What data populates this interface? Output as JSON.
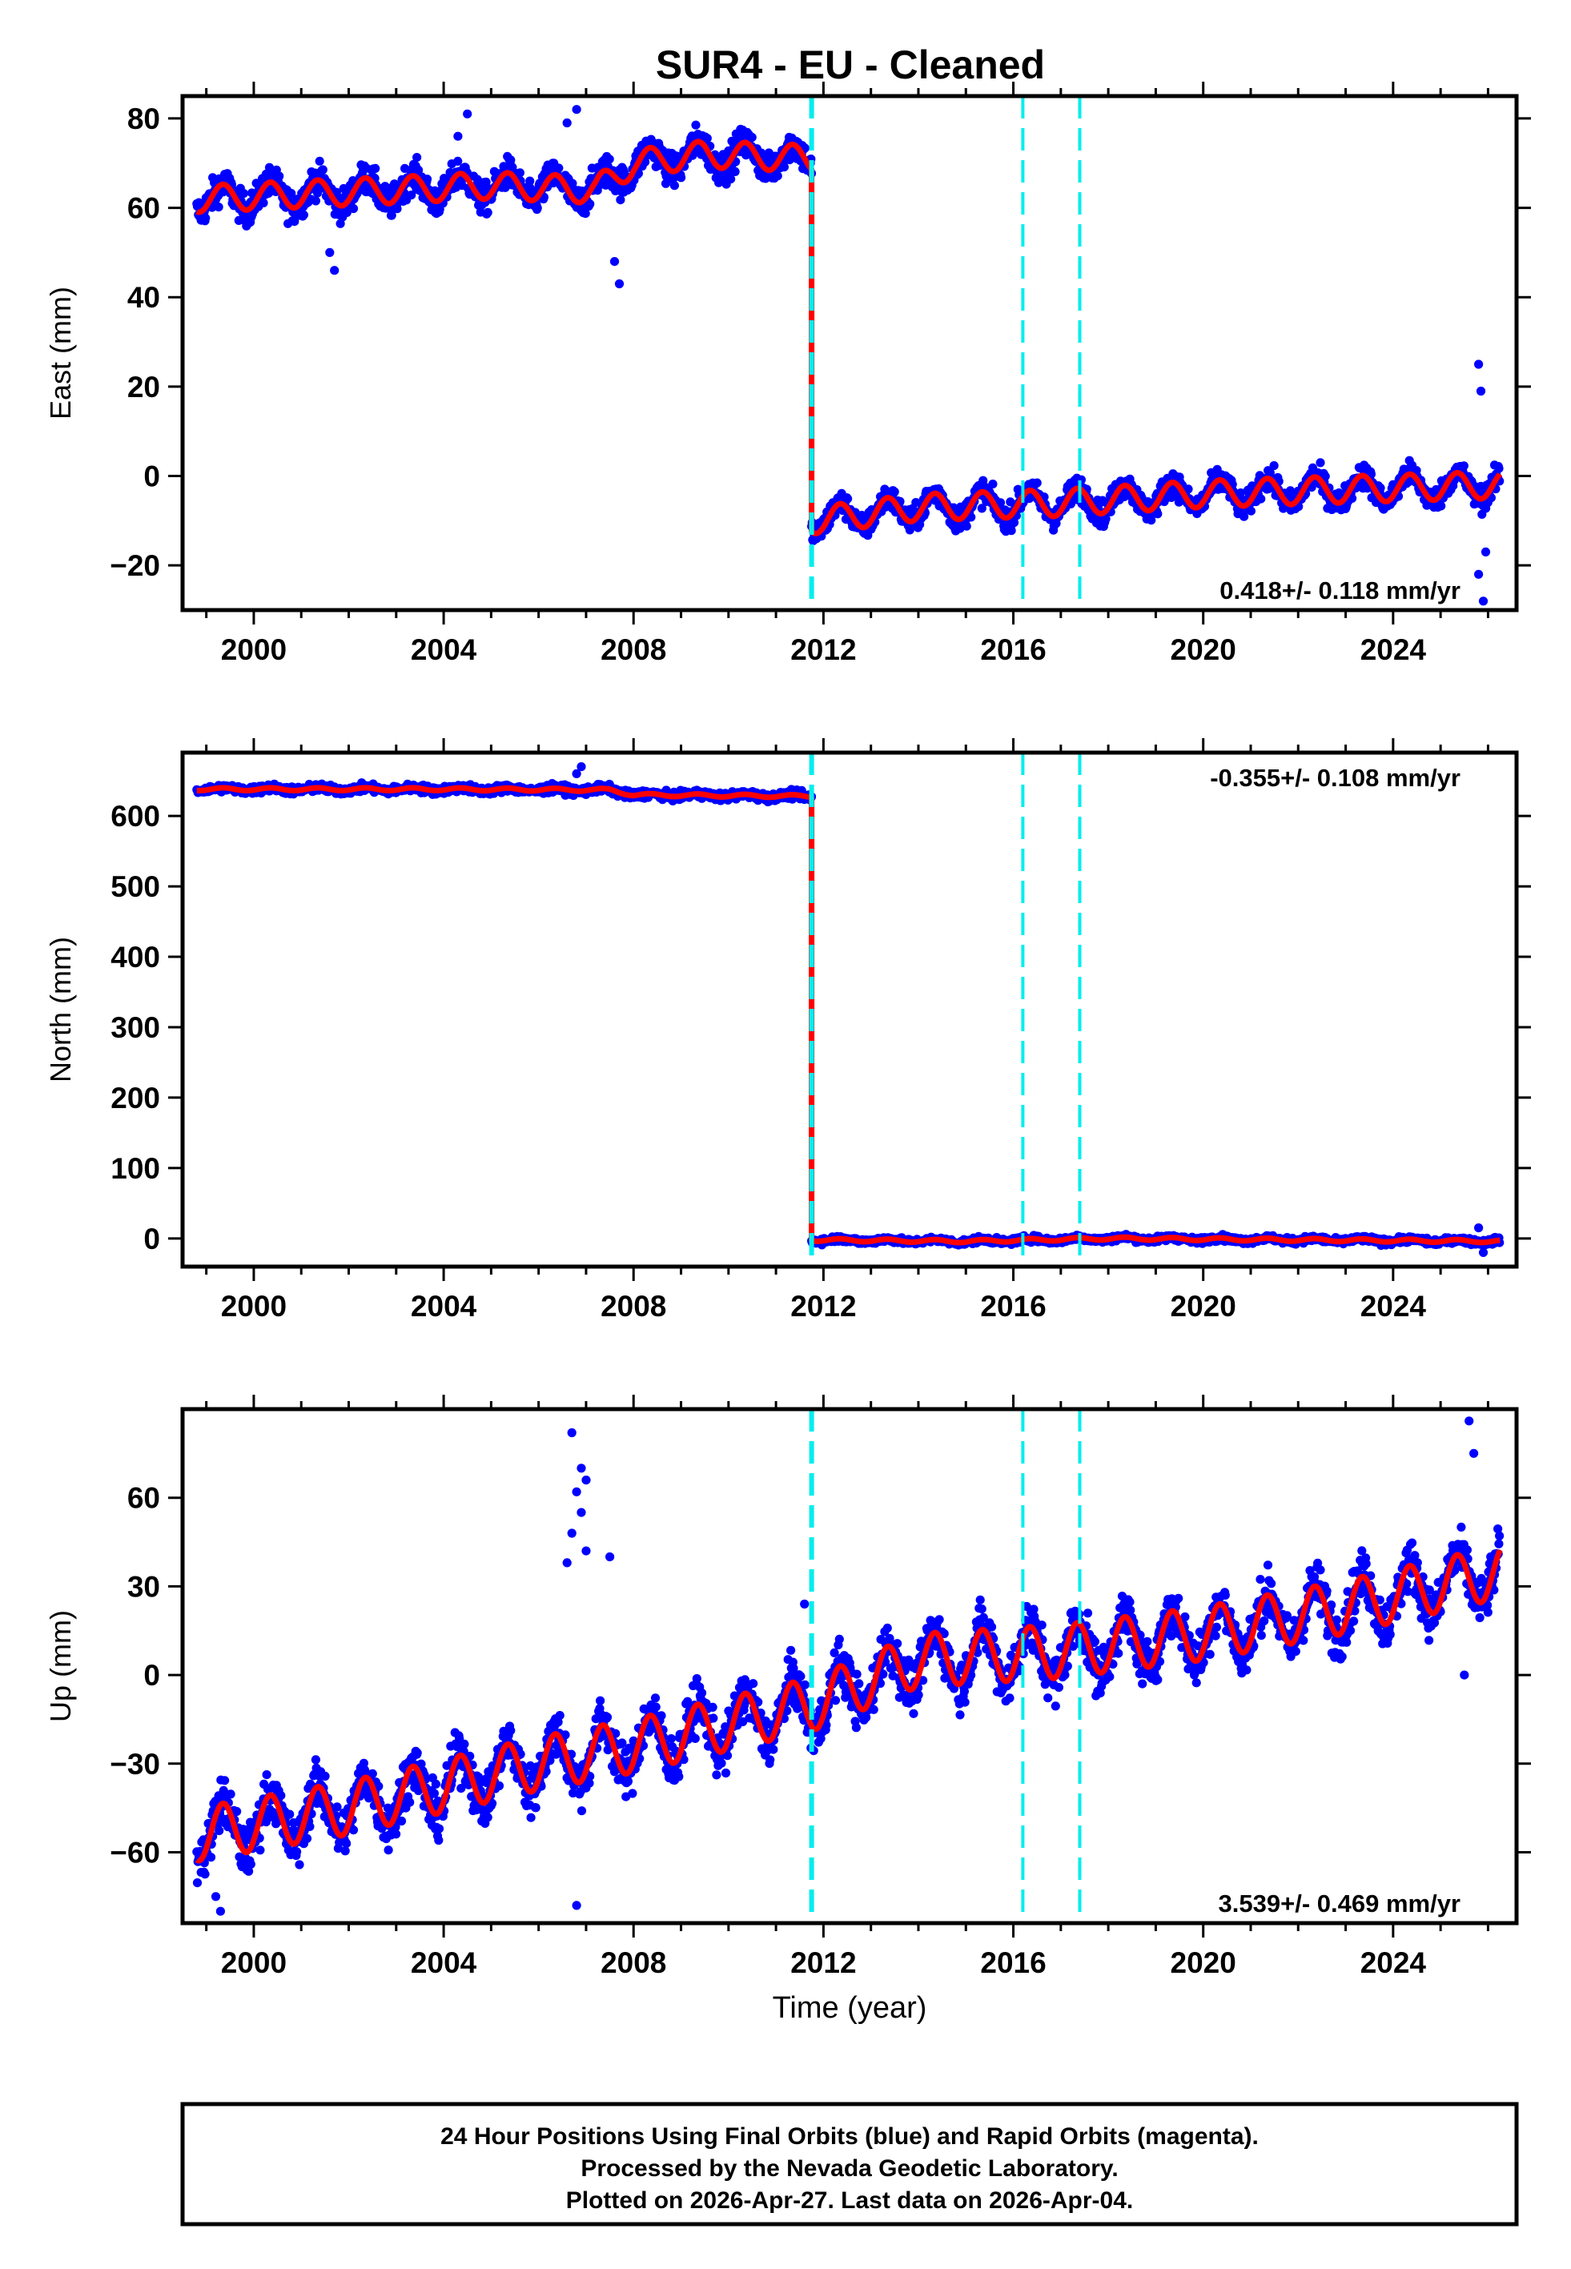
{
  "chart_data": [
    {
      "type": "scatter",
      "panel": "east",
      "title": "SUR4  - EU - Cleaned",
      "ylabel": "East (mm)",
      "xlabel": "",
      "xlim": [
        1998.5,
        2026.6
      ],
      "ylim": [
        -30,
        85
      ],
      "xticks": [
        2000,
        2004,
        2008,
        2012,
        2016,
        2020,
        2024
      ],
      "yticks": [
        -20,
        0,
        20,
        40,
        60,
        80
      ],
      "ytick_labels": [
        "−20",
        "0",
        "20",
        "40",
        "60",
        "80"
      ],
      "rate_label": "0.418+/- 0.118 mm/yr",
      "rate_position": "bottom-right",
      "series": [
        {
          "name": "Final Orbits (blue)",
          "kind": "daily-positions",
          "color": "#0000ff",
          "segments": [
            {
              "start": 1998.8,
              "end": 2011.75,
              "base": [
                [
                  1998.8,
                  62
                ],
                [
                  2003,
                  64
                ],
                [
                  2005,
                  65
                ],
                [
                  2007.2,
                  64
                ],
                [
                  2008,
                  70
                ],
                [
                  2009.5,
                  72
                ],
                [
                  2011.75,
                  71
                ]
              ],
              "amplitude": 3,
              "scatter": 2.5
            },
            {
              "start": 2011.75,
              "end": 2026.25,
              "base": [
                [
                  2011.75,
                  -10
                ],
                [
                  2014,
                  -7
                ],
                [
                  2017,
                  -6
                ],
                [
                  2020,
                  -4
                ],
                [
                  2023,
                  -3
                ],
                [
                  2026.25,
                  -2
                ]
              ],
              "amplitude": 3,
              "scatter": 2
            }
          ]
        },
        {
          "name": "Model fit",
          "kind": "fit-line",
          "color": "#ff0000",
          "segments": [
            {
              "start": 1998.8,
              "end": 2011.75,
              "base": [
                [
                  1998.8,
                  62
                ],
                [
                  2003,
                  64
                ],
                [
                  2005,
                  65
                ],
                [
                  2007.2,
                  64
                ],
                [
                  2008,
                  70
                ],
                [
                  2009.5,
                  72
                ],
                [
                  2011.75,
                  71
                ]
              ],
              "amplitude": 3
            },
            {
              "start": 2011.75,
              "end": 2026.25,
              "base": [
                [
                  2011.75,
                  -10
                ],
                [
                  2014,
                  -7
                ],
                [
                  2017,
                  -6
                ],
                [
                  2020,
                  -4
                ],
                [
                  2023,
                  -3
                ],
                [
                  2026.25,
                  -2
                ]
              ],
              "amplitude": 3
            }
          ]
        }
      ],
      "outliers": [
        {
          "x": 2004.5,
          "y": 81
        },
        {
          "x": 2004.3,
          "y": 76
        },
        {
          "x": 2006.8,
          "y": 82
        },
        {
          "x": 2006.6,
          "y": 79
        },
        {
          "x": 2007.7,
          "y": 43
        },
        {
          "x": 2007.6,
          "y": 48
        },
        {
          "x": 2001.7,
          "y": 46
        },
        {
          "x": 2001.6,
          "y": 50
        },
        {
          "x": 2025.8,
          "y": 25
        },
        {
          "x": 2025.85,
          "y": 19
        },
        {
          "x": 2025.9,
          "y": -28
        },
        {
          "x": 2025.8,
          "y": -22
        },
        {
          "x": 2025.95,
          "y": -17
        }
      ],
      "breaks": [
        {
          "x": 2011.75,
          "style": "heavy"
        },
        {
          "x": 2016.2,
          "style": "light"
        },
        {
          "x": 2017.4,
          "style": "light"
        }
      ]
    },
    {
      "type": "scatter",
      "panel": "north",
      "title": "",
      "ylabel": "North (mm)",
      "xlabel": "",
      "xlim": [
        1998.5,
        2026.6
      ],
      "ylim": [
        -40,
        690
      ],
      "xticks": [
        2000,
        2004,
        2008,
        2012,
        2016,
        2020,
        2024
      ],
      "yticks": [
        0,
        100,
        200,
        300,
        400,
        500,
        600
      ],
      "ytick_labels": [
        "0",
        "100",
        "200",
        "300",
        "400",
        "500",
        "600"
      ],
      "rate_label": "-0.355+/- 0.108 mm/yr",
      "rate_position": "top-right",
      "series": [
        {
          "name": "Final Orbits (blue)",
          "kind": "daily-positions",
          "color": "#0000ff",
          "segments": [
            {
              "start": 1998.8,
              "end": 2011.75,
              "base": [
                [
                  1998.8,
                  638
                ],
                [
                  2004,
                  638
                ],
                [
                  2007.5,
                  637
                ],
                [
                  2008,
                  630
                ],
                [
                  2011.75,
                  628
                ]
              ],
              "amplitude": 2,
              "scatter": 4
            },
            {
              "start": 2011.75,
              "end": 2026.25,
              "base": [
                [
                  2011.75,
                  -2
                ],
                [
                  2015,
                  -4
                ],
                [
                  2018,
                  0
                ],
                [
                  2022,
                  -2
                ],
                [
                  2026.25,
                  -4
                ]
              ],
              "amplitude": 2,
              "scatter": 3
            }
          ]
        },
        {
          "name": "Model fit",
          "kind": "fit-line",
          "color": "#ff0000",
          "segments": [
            {
              "start": 1998.8,
              "end": 2011.75,
              "base": [
                [
                  1998.8,
                  638
                ],
                [
                  2004,
                  638
                ],
                [
                  2007.5,
                  637
                ],
                [
                  2008,
                  630
                ],
                [
                  2011.75,
                  628
                ]
              ],
              "amplitude": 2
            },
            {
              "start": 2011.75,
              "end": 2026.25,
              "base": [
                [
                  2011.75,
                  -2
                ],
                [
                  2015,
                  -4
                ],
                [
                  2018,
                  0
                ],
                [
                  2022,
                  -2
                ],
                [
                  2026.25,
                  -4
                ]
              ],
              "amplitude": 2
            }
          ]
        }
      ],
      "outliers": [
        {
          "x": 2006.9,
          "y": 670
        },
        {
          "x": 2006.8,
          "y": 660
        },
        {
          "x": 2025.8,
          "y": 15
        },
        {
          "x": 2025.9,
          "y": -20
        }
      ],
      "breaks": [
        {
          "x": 2011.75,
          "style": "heavy"
        },
        {
          "x": 2016.2,
          "style": "light"
        },
        {
          "x": 2017.4,
          "style": "light"
        }
      ]
    },
    {
      "type": "scatter",
      "panel": "up",
      "title": "",
      "ylabel": "Up (mm)",
      "xlabel": "Time (year)",
      "xlim": [
        1998.5,
        2026.6
      ],
      "ylim": [
        -84,
        90
      ],
      "xticks": [
        2000,
        2004,
        2008,
        2012,
        2016,
        2020,
        2024
      ],
      "yticks": [
        -60,
        -30,
        0,
        30,
        60
      ],
      "ytick_labels": [
        "−60",
        "−30",
        "0",
        "30",
        "60"
      ],
      "rate_label": "3.539+/- 0.469 mm/yr",
      "rate_position": "bottom-right",
      "series": [
        {
          "name": "Final Orbits (blue)",
          "kind": "daily-positions",
          "color": "#0000ff",
          "segments": [
            {
              "start": 1998.8,
              "end": 2026.25,
              "base": [
                [
                  1998.8,
                  -54
                ],
                [
                  2002,
                  -45
                ],
                [
                  2006,
                  -30
                ],
                [
                  2008,
                  -24
                ],
                [
                  2011.75,
                  -10
                ],
                [
                  2014,
                  5
                ],
                [
                  2017,
                  8
                ],
                [
                  2020,
                  14
                ],
                [
                  2023,
                  23
                ],
                [
                  2026.25,
                  35
                ]
              ],
              "amplitude": 9,
              "scatter": 6
            }
          ]
        },
        {
          "name": "Model fit",
          "kind": "fit-line",
          "color": "#ff0000",
          "segments": [
            {
              "start": 1998.8,
              "end": 2026.25,
              "base": [
                [
                  1998.8,
                  -54
                ],
                [
                  2002,
                  -45
                ],
                [
                  2006,
                  -30
                ],
                [
                  2008,
                  -24
                ],
                [
                  2011.75,
                  -10
                ],
                [
                  2014,
                  5
                ],
                [
                  2017,
                  8
                ],
                [
                  2020,
                  14
                ],
                [
                  2023,
                  23
                ],
                [
                  2026.25,
                  35
                ]
              ],
              "amplitude": 9
            }
          ]
        }
      ],
      "outliers": [
        {
          "x": 2006.7,
          "y": 82
        },
        {
          "x": 2006.9,
          "y": 70
        },
        {
          "x": 2007.0,
          "y": 66
        },
        {
          "x": 2006.8,
          "y": 62
        },
        {
          "x": 2006.9,
          "y": 55
        },
        {
          "x": 2006.7,
          "y": 48
        },
        {
          "x": 2007.0,
          "y": 42
        },
        {
          "x": 2006.6,
          "y": 38
        },
        {
          "x": 2007.5,
          "y": 40
        },
        {
          "x": 2006.8,
          "y": -78
        },
        {
          "x": 1999.3,
          "y": -80
        },
        {
          "x": 1999.2,
          "y": -75
        },
        {
          "x": 2025.6,
          "y": 86
        },
        {
          "x": 2025.7,
          "y": 75
        },
        {
          "x": 2025.5,
          "y": 0
        },
        {
          "x": 2011.6,
          "y": 24
        }
      ],
      "breaks": [
        {
          "x": 2011.75,
          "style": "heavy"
        },
        {
          "x": 2016.2,
          "style": "light"
        },
        {
          "x": 2017.4,
          "style": "light"
        }
      ]
    }
  ],
  "colors": {
    "data_points": "#0000ff",
    "model_fit": "#ff0000",
    "breaks": "#00eeee",
    "axes": "#000000"
  },
  "footer": {
    "line1": "24 Hour Positions Using Final Orbits (blue) and Rapid Orbits (magenta).",
    "line2": "Processed by the Nevada Geodetic Laboratory.",
    "line3": "Plotted on 2026-Apr-27. Last data on 2026-Apr-04."
  }
}
